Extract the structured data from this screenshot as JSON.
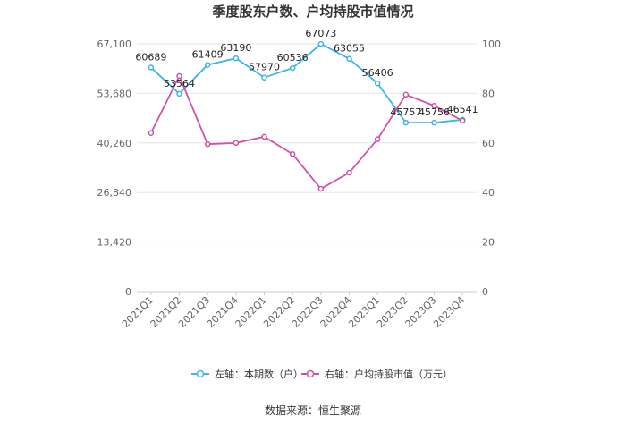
{
  "chart_data": {
    "type": "line",
    "title": "季度股东户数、户均持股市值情况",
    "categories": [
      "2021Q1",
      "2021Q2",
      "2021Q3",
      "2021Q4",
      "2022Q1",
      "2022Q2",
      "2022Q3",
      "2022Q4",
      "2023Q1",
      "2023Q2",
      "2023Q3",
      "2023Q4"
    ],
    "left_axis": {
      "ticks": [
        "0",
        "13,420",
        "26,840",
        "40,260",
        "53,680",
        "67,100"
      ],
      "ylim": [
        0,
        67100
      ]
    },
    "right_axis": {
      "ticks": [
        "0",
        "20",
        "40",
        "60",
        "80",
        "100"
      ],
      "ylim": [
        0,
        100
      ]
    },
    "series": [
      {
        "name": "左轴：本期数（户）",
        "axis": "left",
        "color": "#3fb4e6",
        "values": [
          60689,
          53564,
          61409,
          63190,
          57970,
          60536,
          67073,
          63055,
          56406,
          45757,
          45756,
          46541
        ],
        "labels": [
          "60689",
          "53564",
          "61409",
          "63190",
          "57970",
          "60536",
          "67073",
          "63055",
          "56406",
          "45757",
          "45756",
          "46541"
        ]
      },
      {
        "name": "右轴：户均持股市值（万元）",
        "axis": "right",
        "color": "#d153a8",
        "values": [
          64,
          87,
          59.5,
          60,
          62.5,
          55.5,
          41.5,
          48,
          61.5,
          79.5,
          75,
          69
        ]
      }
    ],
    "legend_position": "bottom",
    "grid": true
  },
  "source": "数据来源：恒生聚源"
}
